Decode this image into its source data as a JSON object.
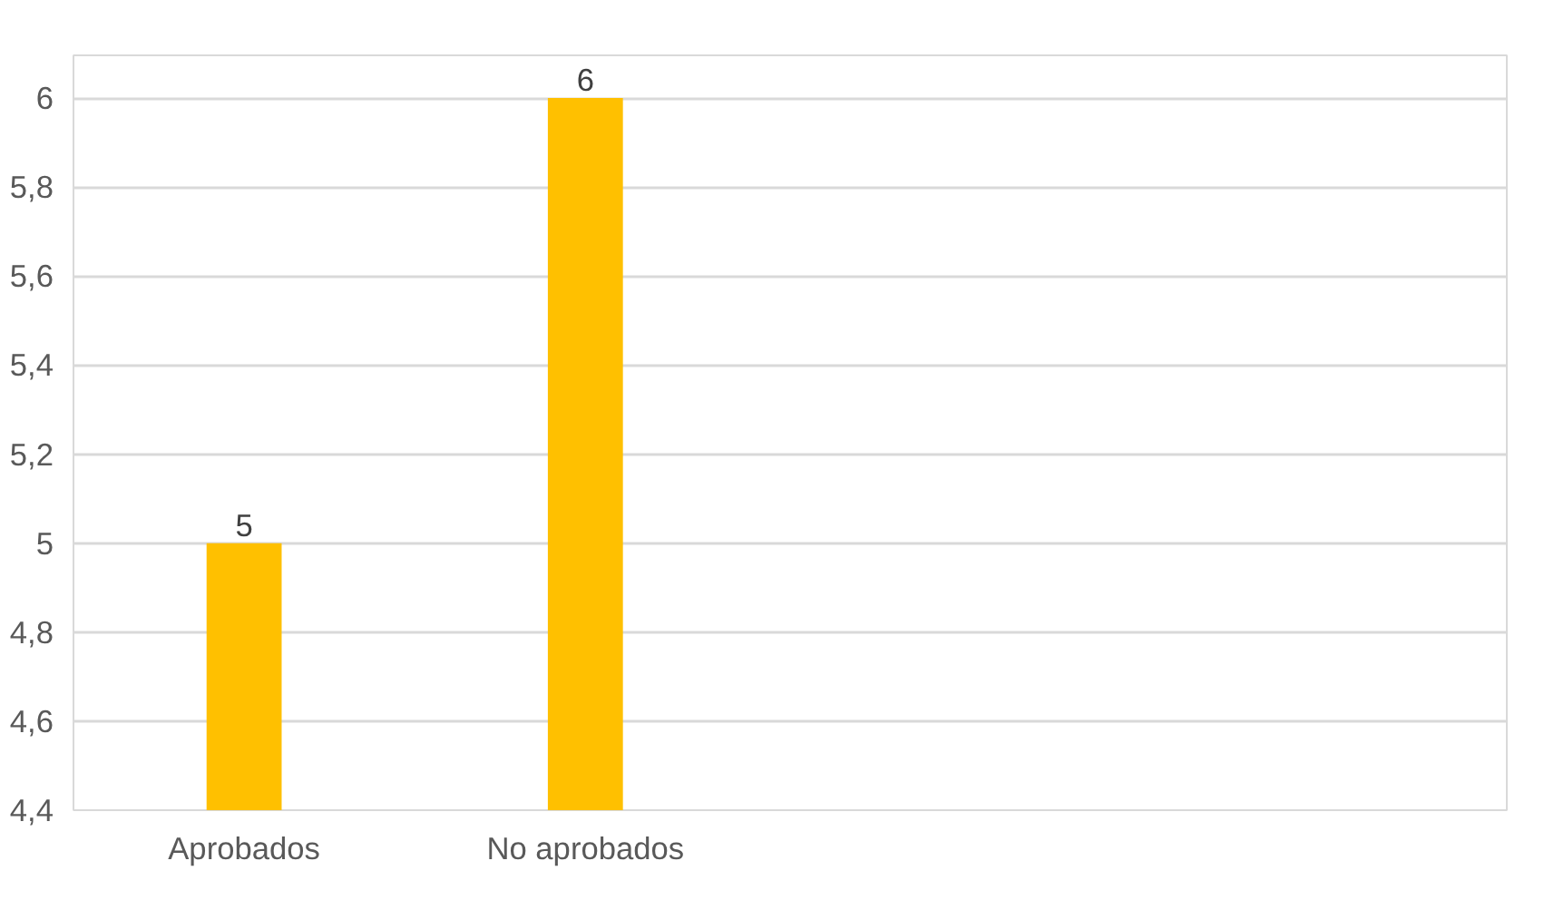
{
  "chart_data": {
    "type": "bar",
    "categories": [
      "Aprobados",
      "No aprobados"
    ],
    "values": [
      5,
      6
    ],
    "color": "#ffc000",
    "ylim": [
      4.4,
      6
    ],
    "yticks": [
      {
        "value": 4.4,
        "label": "4,4"
      },
      {
        "value": 4.6,
        "label": "4,6"
      },
      {
        "value": 4.8,
        "label": "4,8"
      },
      {
        "value": 5,
        "label": "5"
      },
      {
        "value": 5.2,
        "label": "5,2"
      },
      {
        "value": 5.4,
        "label": "5,4"
      },
      {
        "value": 5.6,
        "label": "5,6"
      },
      {
        "value": 5.8,
        "label": "5,8"
      },
      {
        "value": 6,
        "label": "6"
      }
    ],
    "grid": "y",
    "data_labels": true
  }
}
